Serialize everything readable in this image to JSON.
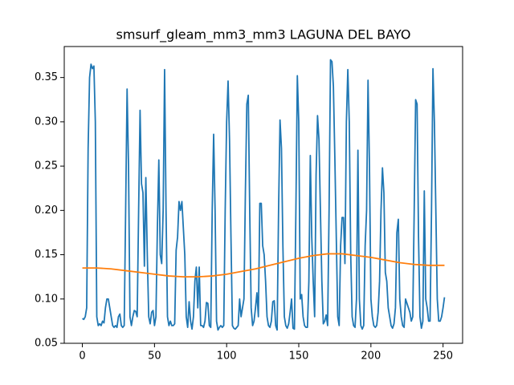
{
  "chart_data": {
    "type": "line",
    "title": "smsurf_gleam_mm3_mm3 LAGUNA DEL BAYO",
    "x": [
      0,
      1,
      2,
      3,
      4,
      5,
      6,
      7,
      8,
      9,
      10,
      11,
      12,
      13,
      14,
      15,
      16,
      17,
      18,
      19,
      20,
      21,
      22,
      23,
      24,
      25,
      26,
      27,
      28,
      29,
      30,
      31,
      32,
      33,
      34,
      35,
      36,
      37,
      38,
      39,
      40,
      41,
      42,
      43,
      44,
      45,
      46,
      47,
      48,
      49,
      50,
      51,
      52,
      53,
      54,
      55,
      56,
      57,
      58,
      59,
      60,
      61,
      62,
      63,
      64,
      65,
      66,
      67,
      68,
      69,
      70,
      71,
      72,
      73,
      74,
      75,
      76,
      77,
      78,
      79,
      80,
      81,
      82,
      83,
      84,
      85,
      86,
      87,
      88,
      89,
      90,
      91,
      92,
      93,
      94,
      95,
      96,
      97,
      98,
      99,
      100,
      101,
      102,
      103,
      104,
      105,
      106,
      107,
      108,
      109,
      110,
      111,
      112,
      113,
      114,
      115,
      116,
      117,
      118,
      119,
      120,
      121,
      122,
      123,
      124,
      125,
      126,
      127,
      128,
      129,
      130,
      131,
      132,
      133,
      134,
      135,
      136,
      137,
      138,
      139,
      140,
      141,
      142,
      143,
      144,
      145,
      146,
      147,
      148,
      149,
      150,
      151,
      152,
      153,
      154,
      155,
      156,
      157,
      158,
      159,
      160,
      161,
      162,
      163,
      164,
      165,
      166,
      167,
      168,
      169,
      170,
      171,
      172,
      173,
      174,
      175,
      176,
      177,
      178,
      179,
      180,
      181,
      182,
      183,
      184,
      185,
      186,
      187,
      188,
      189,
      190,
      191,
      192,
      193,
      194,
      195,
      196,
      197,
      198,
      199,
      200,
      201,
      202,
      203,
      204,
      205,
      206,
      207,
      208,
      209,
      210,
      211,
      212,
      213,
      214,
      215,
      216,
      217,
      218,
      219,
      220,
      221,
      222,
      223,
      224,
      225,
      226,
      227,
      228,
      229,
      230,
      231,
      232,
      233,
      234,
      235,
      236,
      237,
      238,
      239,
      240,
      241,
      242,
      243,
      244,
      245,
      246,
      247,
      248,
      249,
      250,
      251
    ],
    "series": [
      {
        "color": "#1f77b4",
        "values": [
          0.078,
          0.077,
          0.08,
          0.09,
          0.27,
          0.35,
          0.365,
          0.36,
          0.363,
          0.3,
          0.08,
          0.07,
          0.072,
          0.07,
          0.075,
          0.073,
          0.09,
          0.1,
          0.1,
          0.09,
          0.08,
          0.07,
          0.068,
          0.07,
          0.068,
          0.08,
          0.083,
          0.07,
          0.068,
          0.07,
          0.2,
          0.337,
          0.25,
          0.08,
          0.07,
          0.08,
          0.087,
          0.086,
          0.08,
          0.2,
          0.313,
          0.23,
          0.22,
          0.137,
          0.237,
          0.15,
          0.08,
          0.072,
          0.085,
          0.087,
          0.07,
          0.08,
          0.18,
          0.257,
          0.15,
          0.14,
          0.2,
          0.359,
          0.2,
          0.08,
          0.07,
          0.075,
          0.07,
          0.07,
          0.072,
          0.155,
          0.17,
          0.21,
          0.2,
          0.21,
          0.18,
          0.15,
          0.08,
          0.068,
          0.097,
          0.075,
          0.066,
          0.08,
          0.12,
          0.136,
          0.09,
          0.136,
          0.07,
          0.07,
          0.068,
          0.075,
          0.096,
          0.095,
          0.07,
          0.068,
          0.2,
          0.286,
          0.2,
          0.075,
          0.065,
          0.068,
          0.07,
          0.068,
          0.07,
          0.2,
          0.3,
          0.346,
          0.28,
          0.17,
          0.07,
          0.067,
          0.066,
          0.068,
          0.07,
          0.1,
          0.08,
          0.09,
          0.1,
          0.22,
          0.32,
          0.33,
          0.2,
          0.09,
          0.07,
          0.075,
          0.09,
          0.107,
          0.08,
          0.208,
          0.208,
          0.16,
          0.15,
          0.12,
          0.08,
          0.07,
          0.068,
          0.075,
          0.097,
          0.098,
          0.07,
          0.065,
          0.2,
          0.302,
          0.27,
          0.16,
          0.08,
          0.07,
          0.067,
          0.072,
          0.085,
          0.1,
          0.067,
          0.066,
          0.2,
          0.352,
          0.3,
          0.1,
          0.105,
          0.08,
          0.07,
          0.068,
          0.068,
          0.12,
          0.262,
          0.17,
          0.12,
          0.08,
          0.24,
          0.307,
          0.28,
          0.2,
          0.12,
          0.072,
          0.075,
          0.082,
          0.07,
          0.2,
          0.37,
          0.368,
          0.34,
          0.26,
          0.17,
          0.08,
          0.07,
          0.16,
          0.192,
          0.192,
          0.14,
          0.3,
          0.359,
          0.3,
          0.15,
          0.08,
          0.07,
          0.068,
          0.1,
          0.268,
          0.1,
          0.07,
          0.066,
          0.07,
          0.16,
          0.2,
          0.347,
          0.25,
          0.1,
          0.08,
          0.07,
          0.068,
          0.07,
          0.085,
          0.12,
          0.2,
          0.248,
          0.22,
          0.13,
          0.12,
          0.09,
          0.08,
          0.07,
          0.067,
          0.072,
          0.09,
          0.175,
          0.19,
          0.1,
          0.08,
          0.07,
          0.068,
          0.1,
          0.095,
          0.09,
          0.085,
          0.075,
          0.08,
          0.2,
          0.325,
          0.32,
          0.17,
          0.08,
          0.067,
          0.075,
          0.222,
          0.1,
          0.09,
          0.075,
          0.075,
          0.2,
          0.36,
          0.3,
          0.2,
          0.1,
          0.075,
          0.075,
          0.08,
          0.09,
          0.102
        ]
      },
      {
        "color": "#ff7f0e",
        "x": [
          0,
          10,
          20,
          30,
          40,
          50,
          60,
          70,
          80,
          90,
          100,
          110,
          120,
          130,
          140,
          150,
          160,
          170,
          180,
          190,
          200,
          210,
          220,
          230,
          240,
          251
        ],
        "values": [
          0.135,
          0.135,
          0.134,
          0.132,
          0.13,
          0.128,
          0.126,
          0.125,
          0.125,
          0.126,
          0.128,
          0.131,
          0.134,
          0.138,
          0.142,
          0.146,
          0.149,
          0.151,
          0.151,
          0.149,
          0.147,
          0.144,
          0.141,
          0.139,
          0.138,
          0.138
        ]
      }
    ],
    "xlim": [
      -12.55,
      263.55
    ],
    "ylim": [
      0.05,
      0.385
    ],
    "xticks": [
      0,
      50,
      100,
      150,
      200,
      250
    ],
    "yticks": [
      0.05,
      {
        "value": 0.1,
        "label": "0.10"
      },
      0.15,
      {
        "value": 0.2,
        "label": "0.20"
      },
      0.25,
      {
        "value": 0.3,
        "label": "0.30"
      },
      0.35
    ],
    "grid": false
  }
}
